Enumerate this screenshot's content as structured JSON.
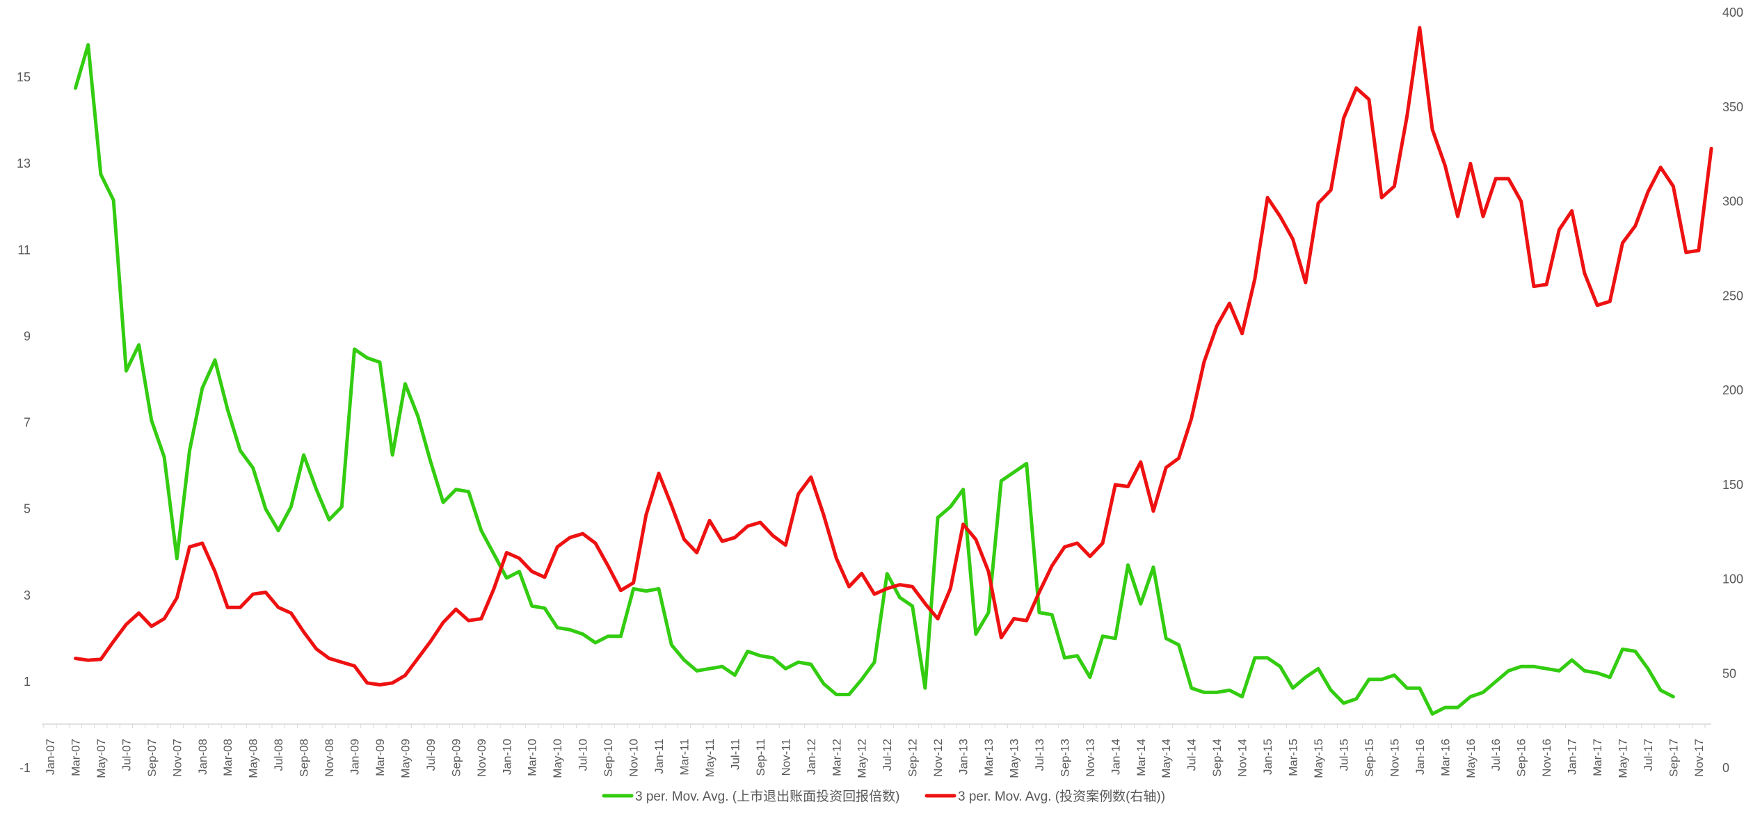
{
  "chart_data": {
    "type": "line",
    "title": "",
    "grid": false,
    "legend_position": "bottom",
    "x_tick_labels": [
      "Jan-07",
      "Mar-07",
      "May-07",
      "Jul-07",
      "Sep-07",
      "Nov-07",
      "Jan-08",
      "Mar-08",
      "May-08",
      "Jul-08",
      "Sep-08",
      "Nov-08",
      "Jan-09",
      "Mar-09",
      "May-09",
      "Jul-09",
      "Sep-09",
      "Nov-09",
      "Jan-10",
      "Mar-10",
      "May-10",
      "Jul-10",
      "Sep-10",
      "Nov-10",
      "Jan-11",
      "Mar-11",
      "May-11",
      "Jul-11",
      "Sep-11",
      "Nov-11",
      "Jan-12",
      "Mar-12",
      "May-12",
      "Jul-12",
      "Sep-12",
      "Nov-12",
      "Jan-13",
      "Mar-13",
      "May-13",
      "Jul-13",
      "Sep-13",
      "Nov-13",
      "Jan-14",
      "Mar-14",
      "May-14",
      "Jul-14",
      "Sep-14",
      "Nov-14",
      "Jan-15",
      "Mar-15",
      "May-15",
      "Jul-15",
      "Sep-15",
      "Nov-15",
      "Jan-16",
      "Mar-16",
      "May-16",
      "Jul-16",
      "Sep-16",
      "Nov-16",
      "Jan-17",
      "Mar-17",
      "May-17",
      "Jul-17",
      "Sep-17",
      "Nov-17"
    ],
    "y_left": {
      "ticks": [
        -1,
        1,
        3,
        5,
        7,
        9,
        11,
        13,
        15
      ],
      "range": [
        -1,
        16.5
      ]
    },
    "y_right": {
      "ticks": [
        0,
        50,
        100,
        150,
        200,
        250,
        300,
        350,
        400
      ],
      "range": [
        0,
        400
      ]
    },
    "series": [
      {
        "name": "3 per. Mov. Avg. (上市退出账面投资回报倍数)",
        "axis": "left",
        "color": "#33CC11",
        "start_index": 2,
        "values": [
          14.75,
          15.75,
          12.75,
          12.15,
          8.2,
          8.8,
          7.05,
          6.2,
          3.85,
          6.35,
          7.8,
          8.45,
          7.3,
          6.35,
          5.95,
          5.0,
          4.5,
          5.05,
          6.25,
          5.45,
          4.75,
          5.05,
          8.7,
          8.5,
          8.4,
          6.25,
          7.9,
          7.15,
          6.1,
          5.15,
          5.45,
          5.4,
          4.5,
          3.95,
          3.4,
          3.55,
          2.75,
          2.7,
          2.25,
          2.2,
          2.1,
          1.9,
          2.05,
          2.05,
          3.15,
          3.1,
          3.15,
          1.85,
          1.5,
          1.25,
          1.3,
          1.35,
          1.15,
          1.7,
          1.6,
          1.55,
          1.3,
          1.45,
          1.4,
          0.95,
          0.7,
          0.7,
          1.05,
          1.45,
          3.5,
          2.95,
          2.75,
          0.85,
          4.8,
          5.05,
          5.45,
          2.1,
          2.6,
          5.65,
          5.85,
          6.05,
          2.6,
          2.55,
          1.55,
          1.6,
          1.1,
          2.05,
          2.0,
          3.7,
          2.8,
          3.65,
          2.0,
          1.85,
          0.85,
          0.75,
          0.75,
          0.8,
          0.65,
          1.55,
          1.55,
          1.35,
          0.85,
          1.1,
          1.3,
          0.8,
          0.5,
          0.6,
          1.05,
          1.05,
          1.15,
          0.85,
          0.85,
          0.25,
          0.4,
          0.4,
          0.65,
          0.75,
          1.0,
          1.25,
          1.35,
          1.35,
          1.3,
          1.25,
          1.5,
          1.25,
          1.2,
          1.1,
          1.75,
          1.7,
          1.3,
          0.8,
          0.65
        ]
      },
      {
        "name": "3 per. Mov. Avg. (投资案例数(右轴))",
        "axis": "right",
        "color": "#EE1111",
        "start_index": 2,
        "values": [
          58,
          57,
          57.5,
          67,
          76,
          82,
          75,
          79,
          90,
          117,
          119,
          104,
          85,
          85,
          92,
          93,
          85,
          82,
          72,
          63,
          58,
          56,
          54,
          45,
          44,
          45,
          49,
          58,
          67,
          77,
          84,
          78,
          79,
          95,
          114,
          111,
          104,
          101,
          117,
          122,
          124,
          119,
          107,
          94,
          98,
          134,
          156,
          139,
          121,
          114,
          131,
          120,
          122,
          128,
          130,
          123,
          118,
          145,
          154,
          134,
          111,
          96,
          103,
          92,
          95,
          97,
          96,
          87,
          79,
          95,
          129,
          121,
          104,
          69,
          79,
          78,
          93,
          107,
          117,
          119,
          112,
          119,
          150,
          149,
          162,
          136,
          159,
          164,
          185,
          215,
          234,
          246,
          230,
          259,
          302,
          292,
          280,
          257,
          299,
          306,
          344,
          360,
          354,
          302,
          308,
          345,
          392,
          338,
          319,
          292,
          320,
          292,
          312,
          312,
          300,
          255,
          256,
          285,
          295,
          262,
          245,
          247,
          278,
          287,
          305,
          318,
          308,
          273,
          274,
          328
        ]
      }
    ]
  }
}
